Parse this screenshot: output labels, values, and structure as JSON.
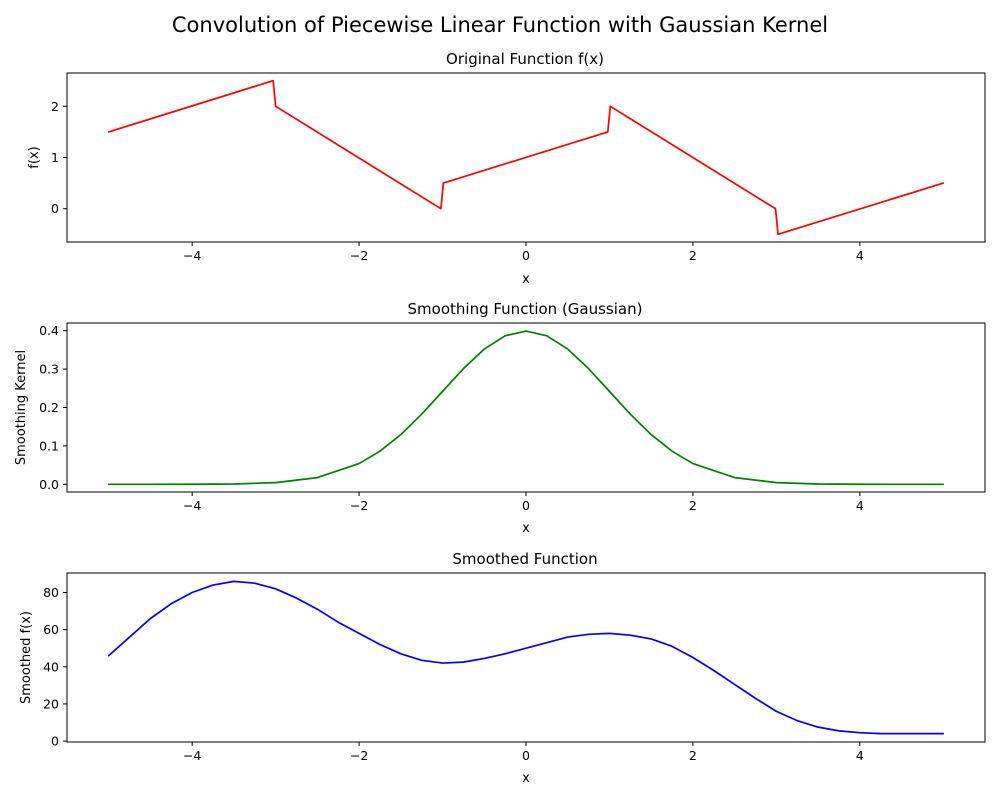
{
  "figure_title": "Convolution of Piecewise Linear Function with Gaussian Kernel",
  "chart_data": [
    {
      "type": "line",
      "title": "Original Function f(x)",
      "xlabel": "x",
      "ylabel": "f(x)",
      "xlim": [
        -5.5,
        5.5
      ],
      "ylim": [
        -0.65,
        2.65
      ],
      "xticks": [
        -4,
        -2,
        0,
        2,
        4
      ],
      "xtick_labels": [
        "−4",
        "−2",
        "0",
        "2",
        "4"
      ],
      "yticks": [
        0,
        1,
        2
      ],
      "ytick_labels": [
        "0",
        "1",
        "2"
      ],
      "grid": false,
      "series": [
        {
          "color": "#ff0000",
          "x": [
            -5,
            -3.03,
            -3.0,
            -1.02,
            -0.99,
            0.98,
            1.01,
            2.99,
            3.02,
            5
          ],
          "y": [
            1.5,
            2.5,
            2.0,
            0.0,
            0.5,
            1.5,
            2.0,
            0.0,
            -0.5,
            0.5
          ]
        }
      ]
    },
    {
      "type": "line",
      "title": "Smoothing Function (Gaussian)",
      "xlabel": "x",
      "ylabel": "Smoothing Kernel",
      "xlim": [
        -5.5,
        5.5
      ],
      "ylim": [
        -0.02,
        0.42
      ],
      "xticks": [
        -4,
        -2,
        0,
        2,
        4
      ],
      "xtick_labels": [
        "−4",
        "−2",
        "0",
        "2",
        "4"
      ],
      "yticks": [
        0.0,
        0.1,
        0.2,
        0.3,
        0.4
      ],
      "ytick_labels": [
        "0.0",
        "0.1",
        "0.2",
        "0.3",
        "0.4"
      ],
      "grid": false,
      "series": [
        {
          "color": "#008000",
          "x": [
            -5,
            -4.5,
            -4,
            -3.5,
            -3,
            -2.5,
            -2,
            -1.75,
            -1.5,
            -1.25,
            -1,
            -0.75,
            -0.5,
            -0.25,
            0,
            0.25,
            0.5,
            0.75,
            1,
            1.25,
            1.5,
            1.75,
            2,
            2.5,
            3,
            3.5,
            4,
            4.5,
            5
          ],
          "y": [
            0.0,
            0.0,
            0.0001,
            0.0009,
            0.0044,
            0.0175,
            0.054,
            0.0863,
            0.1295,
            0.1826,
            0.242,
            0.3011,
            0.3521,
            0.3867,
            0.3989,
            0.3867,
            0.3521,
            0.3011,
            0.242,
            0.1826,
            0.1295,
            0.0863,
            0.054,
            0.0175,
            0.0044,
            0.0009,
            0.0001,
            0.0,
            0.0
          ]
        }
      ]
    },
    {
      "type": "line",
      "title": "Smoothed Function",
      "xlabel": "x",
      "ylabel": "Smoothed f(x)",
      "xlim": [
        -5.5,
        5.5
      ],
      "ylim": [
        -0.5,
        90.5
      ],
      "xticks": [
        -4,
        -2,
        0,
        2,
        4
      ],
      "xtick_labels": [
        "−4",
        "−2",
        "0",
        "2",
        "4"
      ],
      "yticks": [
        0,
        20,
        40,
        60,
        80
      ],
      "ytick_labels": [
        "0",
        "20",
        "40",
        "60",
        "80"
      ],
      "grid": false,
      "series": [
        {
          "color": "#0000ff",
          "x": [
            -5,
            -4.75,
            -4.5,
            -4.25,
            -4,
            -3.75,
            -3.5,
            -3.25,
            -3,
            -2.75,
            -2.5,
            -2.25,
            -2,
            -1.75,
            -1.5,
            -1.25,
            -1,
            -0.75,
            -0.5,
            -0.25,
            0,
            0.25,
            0.5,
            0.75,
            1,
            1.25,
            1.5,
            1.75,
            2,
            2.25,
            2.5,
            2.75,
            3,
            3.25,
            3.5,
            3.75,
            4,
            4.25,
            4.5,
            4.75,
            5
          ],
          "y": [
            46,
            56,
            66,
            74,
            80,
            84,
            86,
            85,
            82,
            77,
            71,
            64,
            58,
            52,
            47,
            43.5,
            42,
            42.5,
            44.5,
            47,
            50,
            53,
            56,
            57.5,
            58,
            57,
            55,
            51,
            45,
            38,
            30.5,
            23,
            16,
            11,
            7.5,
            5.5,
            4.5,
            4,
            4,
            4,
            4
          ]
        }
      ]
    }
  ]
}
